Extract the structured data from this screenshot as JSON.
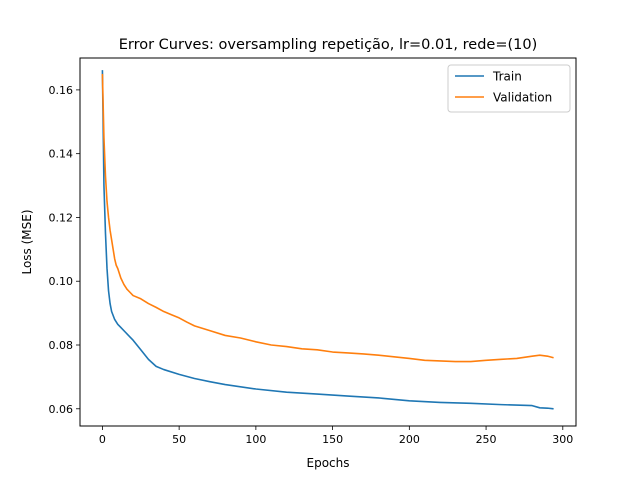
{
  "chart_data": {
    "type": "line",
    "title": "Error Curves: oversampling repetição, lr=0.01, rede=(10)",
    "xlabel": "Epochs",
    "ylabel": "Loss (MSE)",
    "xlim": [
      -14.6,
      308.6
    ],
    "ylim": [
      0.0546,
      0.17
    ],
    "xticks": [
      0,
      50,
      100,
      150,
      200,
      250,
      300
    ],
    "xtick_labels": [
      "0",
      "50",
      "100",
      "150",
      "200",
      "250",
      "300"
    ],
    "yticks": [
      0.06,
      0.08,
      0.1,
      0.12,
      0.14,
      0.16
    ],
    "ytick_labels": [
      "0.06",
      "0.08",
      "0.10",
      "0.12",
      "0.14",
      "0.16"
    ],
    "grid": false,
    "legend_position": "top-right",
    "series": [
      {
        "name": "Train",
        "color": "#1f77b4",
        "x": [
          0,
          1,
          2,
          3,
          4,
          5,
          6,
          8,
          10,
          12,
          15,
          18,
          20,
          25,
          30,
          35,
          40,
          50,
          60,
          70,
          80,
          100,
          120,
          140,
          160,
          180,
          200,
          220,
          240,
          260,
          280,
          285,
          290,
          294
        ],
        "y": [
          0.1662,
          0.13,
          0.115,
          0.104,
          0.097,
          0.093,
          0.0905,
          0.088,
          0.0865,
          0.0855,
          0.084,
          0.0825,
          0.0815,
          0.0785,
          0.0755,
          0.0733,
          0.0723,
          0.0708,
          0.0695,
          0.0685,
          0.0676,
          0.0662,
          0.0652,
          0.0646,
          0.064,
          0.0634,
          0.0625,
          0.062,
          0.0617,
          0.0613,
          0.061,
          0.0603,
          0.0602,
          0.06
        ]
      },
      {
        "name": "Validation",
        "color": "#ff7f0e",
        "x": [
          0,
          1,
          2,
          3,
          4,
          5,
          6,
          7,
          8,
          9,
          10,
          12,
          14,
          16,
          18,
          20,
          25,
          30,
          35,
          40,
          45,
          50,
          55,
          60,
          70,
          80,
          90,
          100,
          110,
          120,
          130,
          140,
          150,
          160,
          170,
          180,
          190,
          200,
          210,
          220,
          230,
          240,
          250,
          260,
          270,
          280,
          285,
          290,
          294
        ],
        "y": [
          0.165,
          0.145,
          0.133,
          0.125,
          0.12,
          0.116,
          0.113,
          0.11,
          0.107,
          0.105,
          0.104,
          0.101,
          0.099,
          0.0975,
          0.0965,
          0.0955,
          0.0945,
          0.093,
          0.0918,
          0.0905,
          0.0895,
          0.0885,
          0.0872,
          0.086,
          0.0845,
          0.083,
          0.0822,
          0.081,
          0.08,
          0.0795,
          0.0788,
          0.0785,
          0.0778,
          0.0775,
          0.0772,
          0.0768,
          0.0763,
          0.0758,
          0.0752,
          0.075,
          0.0748,
          0.0748,
          0.0752,
          0.0755,
          0.0758,
          0.0765,
          0.0768,
          0.0765,
          0.076
        ]
      }
    ]
  }
}
